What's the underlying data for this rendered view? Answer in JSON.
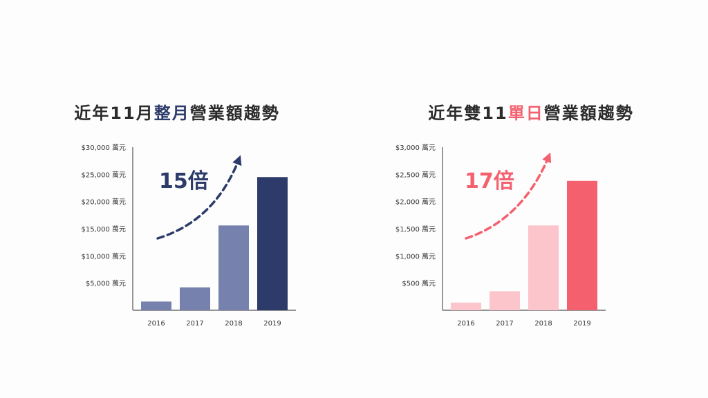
{
  "chart_data": [
    {
      "type": "bar",
      "title_parts": [
        "近年11月",
        "整月",
        "營業額趨勢"
      ],
      "categories": [
        "2016",
        "2017",
        "2018",
        "2019"
      ],
      "values": [
        1600,
        4200,
        15600,
        24500
      ],
      "ylim": [
        0,
        30000
      ],
      "ytick_values": [
        5000,
        10000,
        15000,
        20000,
        25000,
        30000
      ],
      "ytick_labels": [
        "$5,000 萬元",
        "$10,000 萬元",
        "$15,000 萬元",
        "$20,000 萬元",
        "$25,000 萬元",
        "$30,000 萬元"
      ],
      "annotation": "15倍",
      "bar_colors": [
        "#7682ad",
        "#7682ad",
        "#7682ad",
        "#2d3b6a"
      ],
      "accent_color": "#2d3b6a",
      "grid": false
    },
    {
      "type": "bar",
      "title_parts": [
        "近年雙11",
        "單日",
        "營業額趨勢"
      ],
      "categories": [
        "2016",
        "2017",
        "2018",
        "2019"
      ],
      "values": [
        140,
        350,
        1560,
        2380
      ],
      "ylim": [
        0,
        3000
      ],
      "ytick_values": [
        500,
        1000,
        1500,
        2000,
        2500,
        3000
      ],
      "ytick_labels": [
        "$500 萬元",
        "$1,000 萬元",
        "$1,500 萬元",
        "$2,000 萬元",
        "$2,500 萬元",
        "$3,000 萬元"
      ],
      "annotation": "17倍",
      "bar_colors": [
        "#fcc4cb",
        "#fcc4cb",
        "#fcc4cb",
        "#f4606e"
      ],
      "accent_color": "#f4606e",
      "grid": false
    }
  ]
}
